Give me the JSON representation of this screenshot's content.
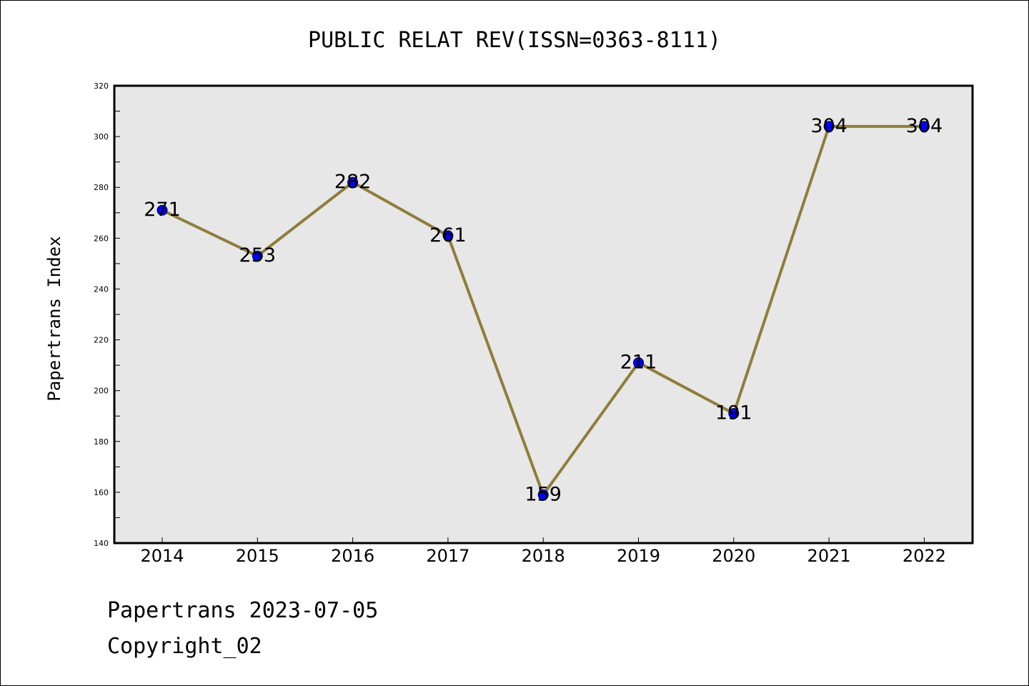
{
  "chart_data": {
    "type": "line",
    "title": "PUBLIC RELAT REV(ISSN=0363-8111)",
    "xlabel": "",
    "ylabel": "Papertrans Index",
    "categories": [
      "2014",
      "2015",
      "2016",
      "2017",
      "2018",
      "2019",
      "2020",
      "2021",
      "2022"
    ],
    "values": [
      271,
      253,
      282,
      261,
      159,
      211,
      191,
      304,
      304
    ],
    "data_labels": [
      "271",
      "253",
      "282",
      "261",
      "159",
      "211",
      "191",
      "304",
      "304"
    ],
    "ylim": [
      140,
      320
    ],
    "yticks": [
      "140",
      "160",
      "180",
      "200",
      "220",
      "240",
      "260",
      "280",
      "300",
      "320"
    ],
    "grid": false,
    "colors": {
      "line": "#8f7d3a",
      "marker": "#0000ff",
      "plot_bg": "#e7e7e7"
    }
  },
  "footer": {
    "line1": "Papertrans 2023-07-05",
    "line2": "Copyright_02"
  }
}
